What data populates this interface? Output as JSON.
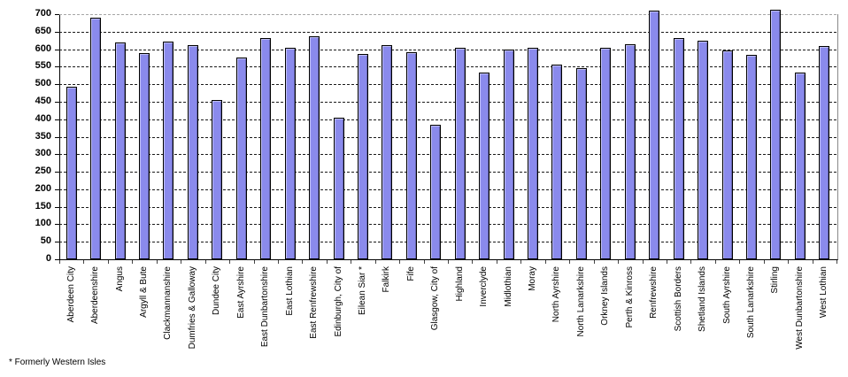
{
  "chart_data": {
    "type": "bar",
    "title": "",
    "xlabel": "",
    "ylabel": "",
    "categories": [
      "Aberdeen City",
      "Aberdeenshire",
      "Angus",
      "Argyll & Bute",
      "Clackmannanshire",
      "Dumfries & Galloway",
      "Dundee City",
      "East Ayrshire",
      "East Dunbartonshire",
      "East Lothian",
      "East Renfrewshire",
      "Edinburgh, City of",
      "Eilean Siar *",
      "Falkirk",
      "Fife",
      "Glasgow, City of",
      "Highland",
      "Inverclyde",
      "Midlothian",
      "Moray",
      "North Ayrshire",
      "North Lanarkshire",
      "Orkney Islands",
      "Perth & Kinross",
      "Renfrewshire",
      "Scottish Borders",
      "Shetland Islands",
      "South Ayrshire",
      "South Lanarkshire",
      "Stirling",
      "West Dunbartonshire",
      "West Lothian"
    ],
    "values": [
      493,
      691,
      620,
      588,
      621,
      612,
      456,
      575,
      631,
      605,
      637,
      405,
      586,
      612,
      591,
      385,
      604,
      533,
      600,
      605,
      556,
      547,
      603,
      615,
      710,
      632,
      623,
      597,
      585,
      713,
      533,
      608
    ],
    "ylim": [
      0,
      700
    ],
    "yticks": [
      0,
      50,
      100,
      150,
      200,
      250,
      300,
      350,
      400,
      450,
      500,
      550,
      600,
      650,
      700
    ],
    "grid": "horizontal-dashed",
    "legend": "none",
    "bar_color": "#8A8AEC",
    "bar_border_color": "#000000",
    "gridline_color": "#1a1a1a",
    "top_gridline_color": "#a6a6a6"
  },
  "footnote": "* Formerly Western Isles"
}
